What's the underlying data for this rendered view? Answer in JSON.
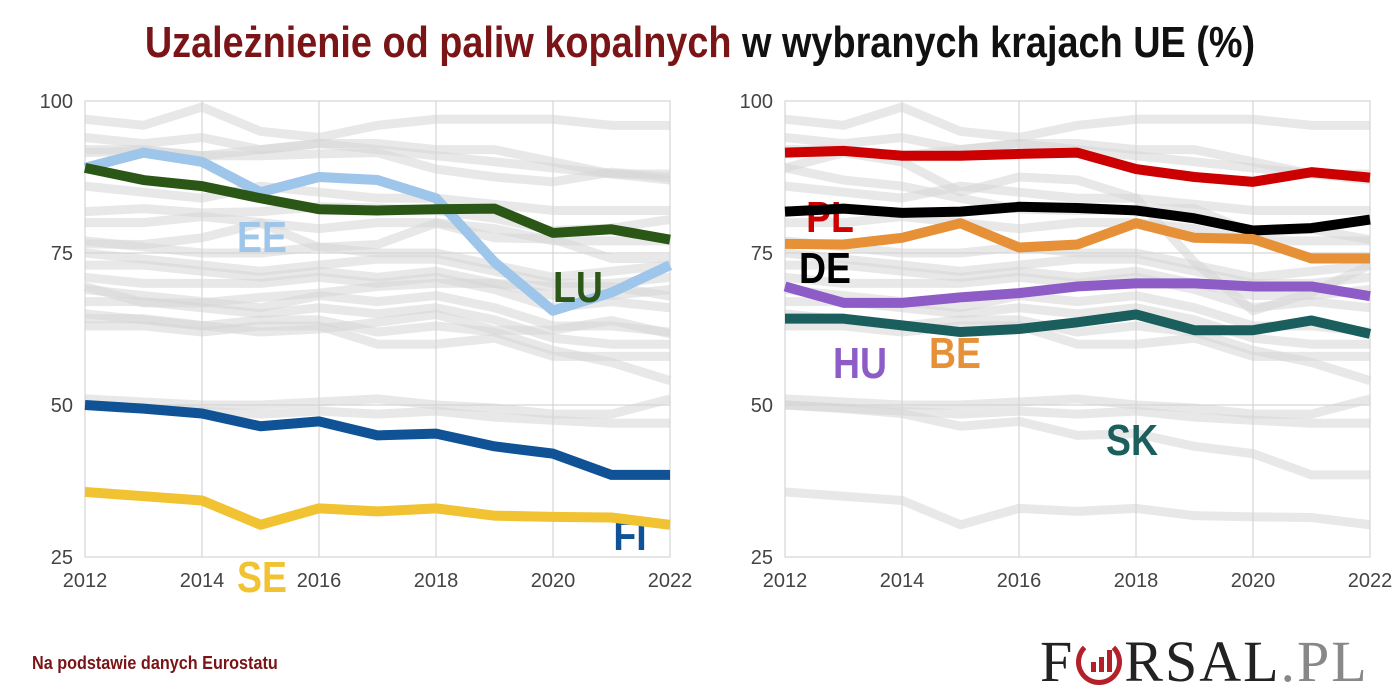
{
  "title": {
    "highlight": "Uzależnienie od paliw kopalnych",
    "rest": " w wybranych krajach UE (%)"
  },
  "source": "Na podstawie danych Eurostatu",
  "logo": "FORSAL.PL",
  "chart_data": [
    {
      "type": "line",
      "x": [
        2012,
        2013,
        2014,
        2015,
        2016,
        2017,
        2018,
        2019,
        2020,
        2021,
        2022
      ],
      "xticks": [
        "2012",
        "2014",
        "2016",
        "2018",
        "2020",
        "2022"
      ],
      "yticks": [
        "25",
        "50",
        "75",
        "100"
      ],
      "ylim": [
        25,
        100
      ],
      "grid": true,
      "series": [
        {
          "name": "EE",
          "color": "#9ec5ea",
          "values": [
            89,
            91.5,
            90,
            85,
            87.5,
            87,
            84,
            73.5,
            65.5,
            68.5,
            73
          ]
        },
        {
          "name": "LU",
          "color": "#2a5616",
          "values": [
            89,
            87,
            86,
            84,
            82.2,
            82,
            82.2,
            82.3,
            78.3,
            78.9,
            77.2
          ]
        },
        {
          "name": "FI",
          "color": "#0f5296",
          "values": [
            50,
            49.4,
            48.6,
            46.5,
            47.3,
            45,
            45.3,
            43.2,
            42,
            38.5,
            38.5
          ]
        },
        {
          "name": "SE",
          "color": "#f1c232",
          "values": [
            35.7,
            35,
            34.3,
            30.3,
            33,
            32.5,
            33,
            31.8,
            31.6,
            31.5,
            30.3
          ]
        }
      ]
    },
    {
      "type": "line",
      "x": [
        2012,
        2013,
        2014,
        2015,
        2016,
        2017,
        2018,
        2019,
        2020,
        2021,
        2022
      ],
      "xticks": [
        "2012",
        "2014",
        "2016",
        "2018",
        "2020",
        "2022"
      ],
      "yticks": [
        "25",
        "50",
        "75",
        "100"
      ],
      "ylim": [
        25,
        100
      ],
      "grid": true,
      "series": [
        {
          "name": "PL",
          "color": "#cc0000",
          "values": [
            91.5,
            91.8,
            91,
            91,
            91.3,
            91.5,
            88.8,
            87.5,
            86.7,
            88.3,
            87.4
          ]
        },
        {
          "name": "DE",
          "color": "#000000",
          "values": [
            81.8,
            82.3,
            81.6,
            81.8,
            82.6,
            82.4,
            82,
            80.7,
            78.7,
            79.1,
            80.5
          ]
        },
        {
          "name": "BE",
          "color": "#e69138",
          "values": [
            76.5,
            76.4,
            77.5,
            79.9,
            75.9,
            76.4,
            79.9,
            77.5,
            77.3,
            74.1,
            74.1
          ]
        },
        {
          "name": "HU",
          "color": "#8e5cc7",
          "values": [
            69.5,
            66.8,
            66.8,
            67.7,
            68.4,
            69.5,
            70,
            70,
            69.5,
            69.5,
            67.9
          ]
        },
        {
          "name": "SK",
          "color": "#1b5e5e",
          "values": [
            64.2,
            64.2,
            63.1,
            62,
            62.5,
            63.6,
            64.9,
            62.3,
            62.3,
            63.9,
            61.7
          ]
        }
      ]
    }
  ],
  "background_series": [
    [
      97,
      96,
      99,
      95,
      94,
      96,
      97,
      97,
      97,
      96,
      96
    ],
    [
      94,
      93,
      94,
      92,
      93,
      93,
      92,
      92,
      90,
      88,
      87
    ],
    [
      92,
      92,
      91,
      92,
      93,
      92,
      91,
      90,
      89,
      88,
      88
    ],
    [
      86,
      85,
      84,
      86,
      85,
      84,
      84,
      83,
      82,
      82,
      82
    ],
    [
      80,
      80,
      81,
      80,
      79,
      80,
      80,
      79,
      77,
      77,
      77
    ],
    [
      77,
      76,
      75,
      75,
      76,
      75,
      75,
      73,
      71,
      72,
      73
    ],
    [
      75,
      74,
      73,
      72,
      73,
      74,
      74,
      72,
      70,
      70,
      71
    ],
    [
      73,
      73,
      72,
      71,
      72,
      71,
      72,
      70,
      68,
      68,
      69
    ],
    [
      71,
      70,
      70,
      70,
      71,
      70,
      71,
      69,
      66,
      67,
      66
    ],
    [
      69,
      68,
      67,
      66,
      68,
      67,
      68,
      66,
      63,
      63,
      62
    ],
    [
      67,
      67,
      66,
      65,
      66,
      65,
      66,
      64,
      61,
      60,
      60
    ],
    [
      65,
      64,
      63,
      64,
      64,
      62,
      63,
      62,
      59,
      57,
      54
    ],
    [
      63,
      63,
      62,
      63,
      63,
      60,
      60,
      61,
      58,
      58,
      58
    ],
    [
      51,
      50.5,
      50,
      50,
      50.5,
      51,
      50,
      49.5,
      48.5,
      48.5,
      51
    ],
    [
      50,
      49.5,
      49,
      48.5,
      49,
      48.5,
      49,
      48,
      47.5,
      47,
      47
    ]
  ]
}
